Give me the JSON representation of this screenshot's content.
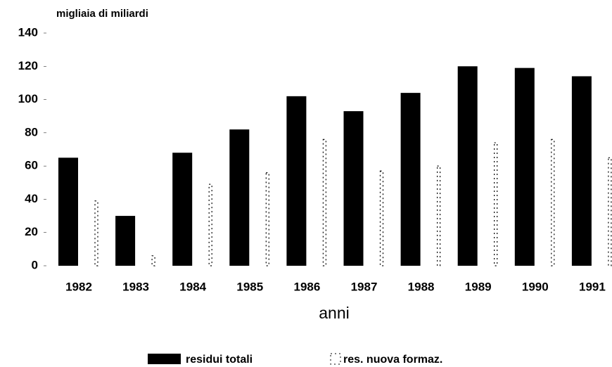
{
  "chart_data": {
    "type": "bar",
    "y_label": "migliaia di miliardi",
    "x_label": "anni",
    "categories": [
      "1982",
      "1983",
      "1984",
      "1985",
      "1986",
      "1987",
      "1988",
      "1989",
      "1990",
      "1991"
    ],
    "series": [
      {
        "name": "residui totali",
        "color": "#000000",
        "style": "solid",
        "values": [
          65,
          30,
          68,
          82,
          102,
          93,
          104,
          120,
          119,
          114
        ]
      },
      {
        "name": "res. nuova formaz.",
        "color": "#000000",
        "style": "dotted",
        "values": [
          39,
          6,
          49,
          56,
          76,
          57,
          60,
          74,
          76,
          65
        ]
      }
    ],
    "ylim": [
      0,
      140
    ],
    "yticks": [
      0,
      20,
      40,
      60,
      80,
      100,
      120,
      140
    ],
    "grid": false
  }
}
